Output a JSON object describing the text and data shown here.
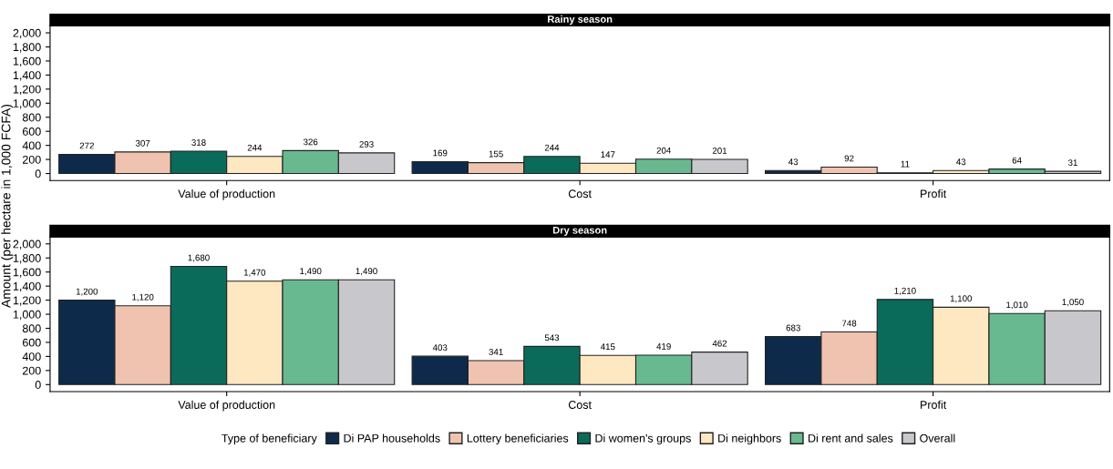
{
  "chart_data": [
    {
      "type": "bar",
      "title": "Rainy season",
      "categories": [
        "Value of production",
        "Cost",
        "Profit"
      ],
      "ylim": [
        -100,
        2100
      ],
      "yticks": [
        {
          "value": 0,
          "label": "0"
        },
        {
          "value": 200,
          "label": "200"
        },
        {
          "value": 400,
          "label": "400"
        },
        {
          "value": 600,
          "label": "600"
        },
        {
          "value": 800,
          "label": "800"
        },
        {
          "value": 1000,
          "label": "1,000"
        },
        {
          "value": 1200,
          "label": "1,200"
        },
        {
          "value": 1400,
          "label": "1,400"
        },
        {
          "value": 1600,
          "label": "1,600"
        },
        {
          "value": 1800,
          "label": "1,800"
        },
        {
          "value": 2000,
          "label": "2,000"
        }
      ],
      "grid": false,
      "legend": false,
      "series": [
        {
          "color": "#0e2a4b",
          "values": [
            272,
            169,
            43
          ],
          "value_labels": [
            "272",
            "169",
            "43"
          ]
        },
        {
          "color": "#f0c3b1",
          "values": [
            307,
            155,
            92
          ],
          "value_labels": [
            "307",
            "155",
            "92"
          ]
        },
        {
          "color": "#0b6b5a",
          "values": [
            318,
            244,
            11
          ],
          "value_labels": [
            "318",
            "244",
            "11"
          ]
        },
        {
          "color": "#fde8c2",
          "values": [
            244,
            147,
            43
          ],
          "value_labels": [
            "244",
            "147",
            "43"
          ]
        },
        {
          "color": "#68b98f",
          "values": [
            326,
            204,
            64
          ],
          "value_labels": [
            "326",
            "204",
            "64"
          ]
        },
        {
          "color": "#c8c8cc",
          "values": [
            293,
            201,
            31
          ],
          "value_labels": [
            "293",
            "201",
            "31"
          ]
        }
      ]
    },
    {
      "type": "bar",
      "title": "Dry season",
      "ylabel": "Amount (per hectare in 1,000 FCFA)",
      "legend_title": "Type of beneficiary",
      "categories": [
        "Value of production",
        "Cost",
        "Profit"
      ],
      "ylim": [
        -100,
        2100
      ],
      "yticks": [
        {
          "value": 0,
          "label": "0"
        },
        {
          "value": 200,
          "label": "200"
        },
        {
          "value": 400,
          "label": "400"
        },
        {
          "value": 600,
          "label": "600"
        },
        {
          "value": 800,
          "label": "800"
        },
        {
          "value": 1000,
          "label": "1,000"
        },
        {
          "value": 1200,
          "label": "1,200"
        },
        {
          "value": 1400,
          "label": "1,400"
        },
        {
          "value": 1600,
          "label": "1,600"
        },
        {
          "value": 1800,
          "label": "1,800"
        },
        {
          "value": 2000,
          "label": "2,000"
        }
      ],
      "grid": false,
      "legend": "bottom",
      "series": [
        {
          "name": "Di PAP households",
          "color": "#0e2a4b",
          "values": [
            1200,
            403,
            683
          ],
          "value_labels": [
            "1,200",
            "403",
            "683"
          ]
        },
        {
          "name": "Lottery beneficiaries",
          "color": "#f0c3b1",
          "values": [
            1120,
            341,
            748
          ],
          "value_labels": [
            "1,120",
            "341",
            "748"
          ]
        },
        {
          "name": "Di women's groups",
          "color": "#0b6b5a",
          "values": [
            1680,
            543,
            1210
          ],
          "value_labels": [
            "1,680",
            "543",
            "1,210"
          ]
        },
        {
          "name": "Di neighbors",
          "color": "#fde8c2",
          "values": [
            1470,
            415,
            1100
          ],
          "value_labels": [
            "1,470",
            "415",
            "1,100"
          ]
        },
        {
          "name": "Di rent and sales",
          "color": "#68b98f",
          "values": [
            1490,
            419,
            1010
          ],
          "value_labels": [
            "1,490",
            "419",
            "1,010"
          ]
        },
        {
          "name": "Overall",
          "color": "#c8c8cc",
          "values": [
            1490,
            462,
            1050
          ],
          "value_labels": [
            "1,490",
            "462",
            "1,050"
          ]
        }
      ]
    }
  ]
}
